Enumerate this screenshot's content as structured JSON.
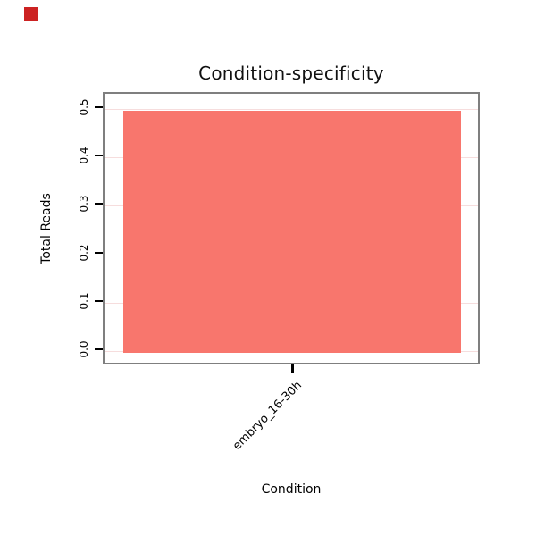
{
  "decor": {
    "corner_square_color": "#CC2222"
  },
  "chart_data": {
    "type": "bar",
    "title": "Condition-specificity",
    "xlabel": "Condition",
    "ylabel": "Total Reads",
    "categories": [
      "embryo_16-30h"
    ],
    "values": [
      0.5
    ],
    "ylim": [
      0,
      0.5
    ],
    "yticks": [
      "0.0",
      "0.1",
      "0.2",
      "0.3",
      "0.4",
      "0.5"
    ],
    "bar_color": "#F8766D",
    "panel_border_color": "#7F7F7F",
    "gridline_color": "#F6DDDD",
    "tick_color": "#000000",
    "grid": "horizontal",
    "legend": "none"
  }
}
